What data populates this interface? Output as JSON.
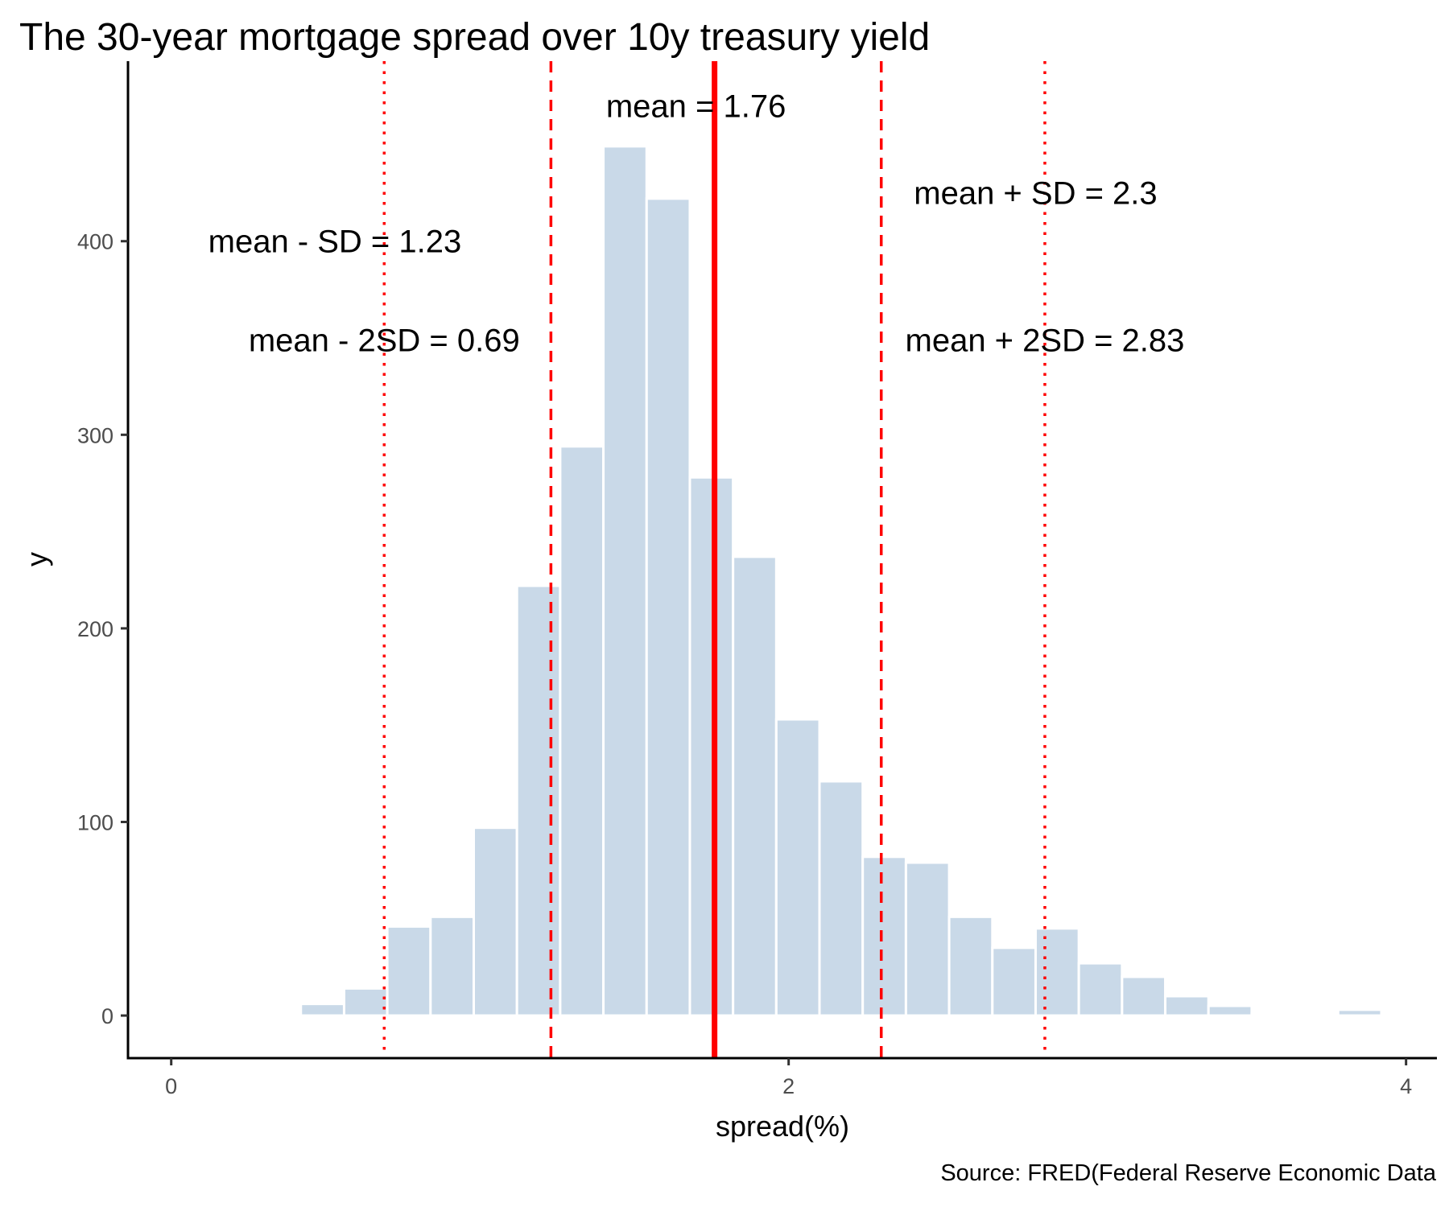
{
  "chart_data": {
    "type": "bar",
    "title": "The 30-year mortgage spread over 10y treasury yield",
    "xlabel": "spread(%)",
    "ylabel": "y",
    "caption": "Source: FRED(Federal Reserve Economic Data",
    "xlim": [
      -0.14,
      4.1
    ],
    "ylim": [
      -22,
      493
    ],
    "x_ticks": [
      0,
      2,
      4
    ],
    "y_ticks": [
      0,
      100,
      200,
      300,
      400
    ],
    "grid": false,
    "bar_color": "#c9d9e8",
    "bar_outline": "#ffffff",
    "bin_width": 0.14,
    "bins_center": [
      0.35,
      0.49,
      0.63,
      0.77,
      0.91,
      1.05,
      1.19,
      1.33,
      1.47,
      1.61,
      1.75,
      1.89,
      2.03,
      2.17,
      2.31,
      2.45,
      2.59,
      2.73,
      2.87,
      3.01,
      3.15,
      3.29,
      3.43,
      3.57,
      3.71,
      3.85,
      3.99
    ],
    "counts": [
      1,
      6,
      14,
      46,
      51,
      97,
      222,
      294,
      449,
      422,
      278,
      237,
      153,
      121,
      82,
      79,
      51,
      35,
      45,
      27,
      20,
      10,
      5,
      1,
      1,
      3,
      1
    ],
    "reference_lines": [
      {
        "value": 1.76,
        "style": "solid",
        "color": "#ff0000"
      },
      {
        "value": 1.23,
        "style": "dashed",
        "color": "#ff0000"
      },
      {
        "value": 2.3,
        "style": "dashed",
        "color": "#ff0000"
      },
      {
        "value": 0.69,
        "style": "dotted",
        "color": "#ff0000"
      },
      {
        "value": 2.83,
        "style": "dotted",
        "color": "#ff0000"
      }
    ],
    "annotations": [
      {
        "text": "mean = 1.76",
        "x": 1.7,
        "y": 470
      },
      {
        "text": "mean + SD = 2.3",
        "x": 2.8,
        "y": 425
      },
      {
        "text": "mean - SD = 1.23",
        "x": 0.53,
        "y": 400
      },
      {
        "text": "mean - 2SD = 0.69",
        "x": 0.69,
        "y": 349
      },
      {
        "text": "mean + 2SD = 2.83",
        "x": 2.83,
        "y": 349
      }
    ]
  }
}
